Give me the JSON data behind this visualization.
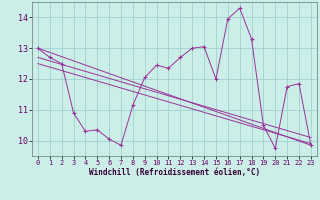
{
  "xlabel": "Windchill (Refroidissement éolien,°C)",
  "background_color": "#cceee8",
  "grid_color": "#99cccc",
  "line_color": "#993399",
  "xlim": [
    -0.5,
    23.5
  ],
  "ylim": [
    9.5,
    14.5
  ],
  "yticks": [
    10,
    11,
    12,
    13,
    14
  ],
  "xticks": [
    0,
    1,
    2,
    3,
    4,
    5,
    6,
    7,
    8,
    9,
    10,
    11,
    12,
    13,
    14,
    15,
    16,
    17,
    18,
    19,
    20,
    21,
    22,
    23
  ],
  "series1_x": [
    0,
    1,
    2,
    3,
    4,
    5,
    6,
    7,
    8,
    9,
    10,
    11,
    12,
    13,
    14,
    15,
    16,
    17,
    18,
    19,
    20,
    21,
    22,
    23
  ],
  "series1_y": [
    13.0,
    12.7,
    12.5,
    10.9,
    10.3,
    10.35,
    10.05,
    9.85,
    11.15,
    12.05,
    12.45,
    12.35,
    12.7,
    13.0,
    13.05,
    12.0,
    13.95,
    14.3,
    13.3,
    10.5,
    9.75,
    11.75,
    11.85,
    9.85
  ],
  "series2_x": [
    0,
    23
  ],
  "series2_y": [
    13.0,
    9.85
  ],
  "series3_x": [
    0,
    23
  ],
  "series3_y": [
    12.7,
    10.1
  ],
  "series4_x": [
    0,
    23
  ],
  "series4_y": [
    12.5,
    9.9
  ]
}
